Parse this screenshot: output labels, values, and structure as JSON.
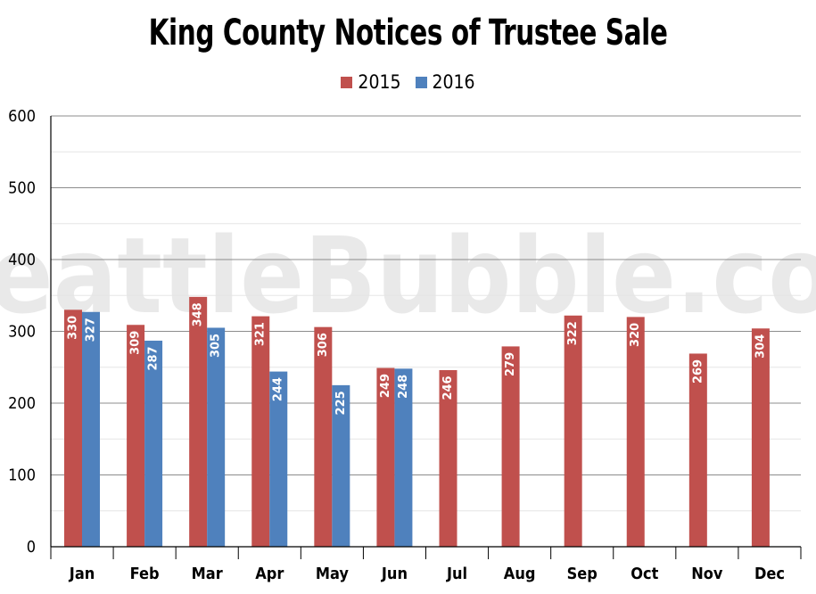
{
  "watermark": "SeattleBubble.com",
  "chart_data": {
    "type": "bar",
    "title": "King County Notices of Trustee Sale",
    "xlabel": "",
    "ylabel": "",
    "ylim": [
      0,
      600
    ],
    "yticks": [
      0,
      100,
      200,
      300,
      400,
      500,
      600
    ],
    "grid": true,
    "legend_position": "top-center",
    "categories": [
      "Jan",
      "Feb",
      "Mar",
      "Apr",
      "May",
      "Jun",
      "Jul",
      "Aug",
      "Sep",
      "Oct",
      "Nov",
      "Dec"
    ],
    "series": [
      {
        "name": "2015",
        "color": "#c0504d",
        "values": [
          330,
          309,
          348,
          321,
          306,
          249,
          246,
          279,
          322,
          320,
          269,
          304
        ]
      },
      {
        "name": "2016",
        "color": "#4f81bd",
        "values": [
          327,
          287,
          305,
          244,
          225,
          248,
          null,
          null,
          null,
          null,
          null,
          null
        ]
      }
    ]
  }
}
